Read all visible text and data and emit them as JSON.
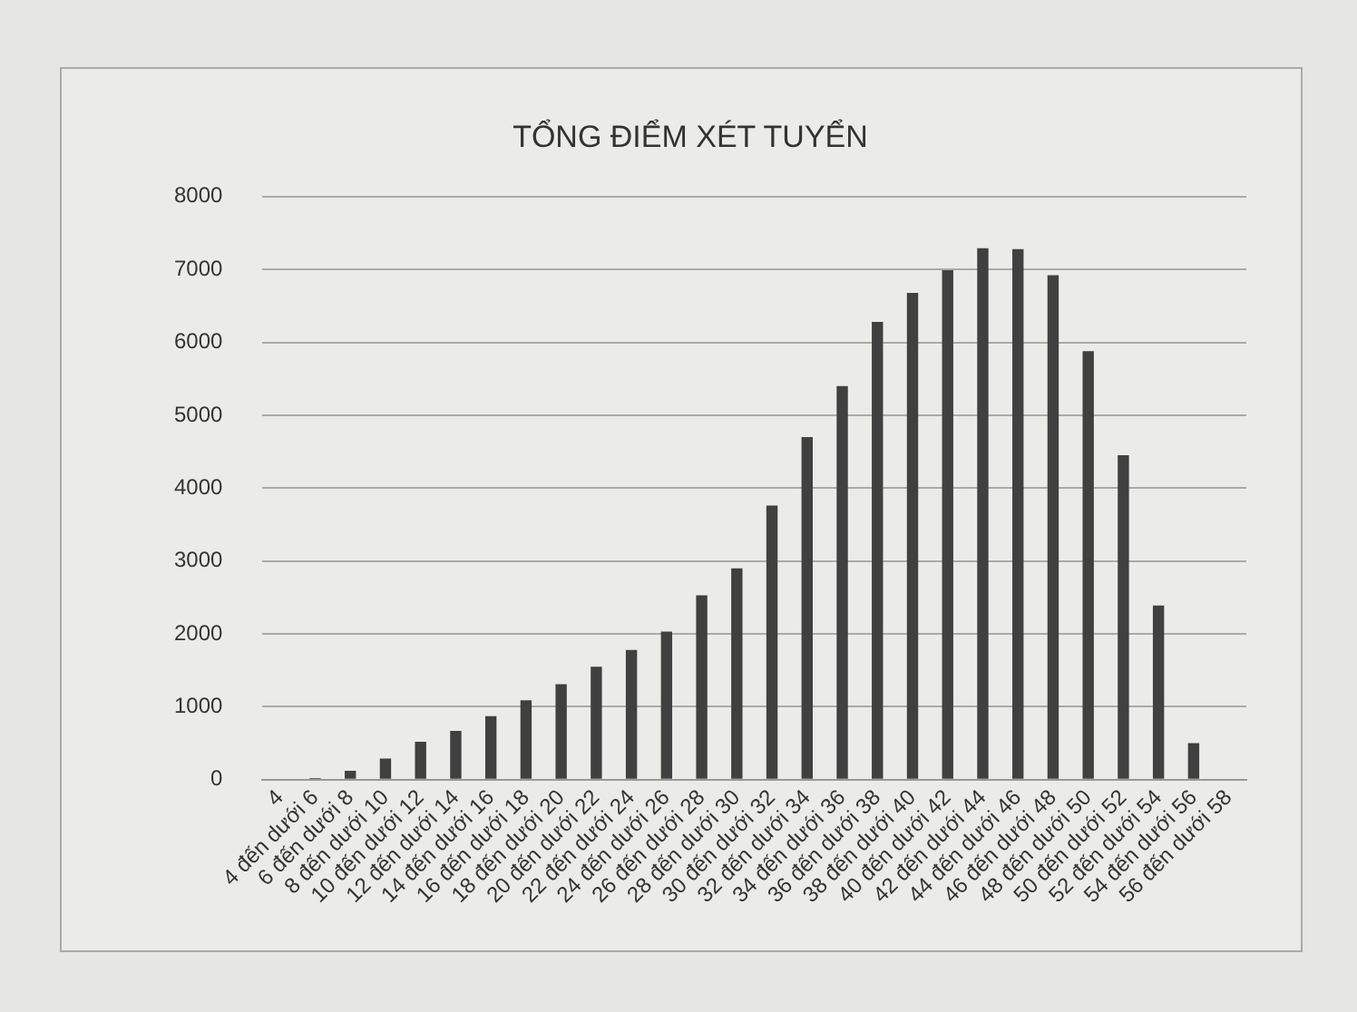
{
  "chart_data": {
    "type": "bar",
    "title": "TỔNG ĐIỂM XÉT TUYỂN",
    "categories": [
      "4",
      "4 đến dưới 6",
      "6 đến dưới 8",
      "8 đến dưới 10",
      "10 đến dưới 12",
      "12 đến dưới 14",
      "14 đến dưới 16",
      "16 đến dưới 18",
      "18 đến dưới 20",
      "20 đến dưới 22",
      "22 đến dưới 24",
      "24 đến dưới 26",
      "26 đến dưới 28",
      "28 đến dưới 30",
      "30 đến dưới 32",
      "32 đến dưới 34",
      "34 đến dưới 36",
      "36 đến dưới 38",
      "38 đến dưới 40",
      "40 đến dưới 42",
      "42 đến dưới 44",
      "44 đến dưới 46",
      "46 đến dưới 48",
      "48 đến dưới 50",
      "50 đến dưới 52",
      "52 đến dưới 54",
      "54 đến dưới 56",
      "56 đến dưới 58"
    ],
    "values": [
      0,
      20,
      120,
      290,
      520,
      670,
      870,
      1090,
      1310,
      1550,
      1780,
      2030,
      2530,
      2900,
      3760,
      4700,
      5400,
      6280,
      6680,
      6990,
      7290,
      7280,
      6920,
      5880,
      4450,
      2390,
      500,
      0
    ],
    "color": "#404040",
    "ylim": [
      0,
      8000
    ],
    "yticks": [
      0,
      1000,
      2000,
      3000,
      4000,
      5000,
      6000,
      7000,
      8000
    ],
    "grid": "y",
    "legend": false
  }
}
